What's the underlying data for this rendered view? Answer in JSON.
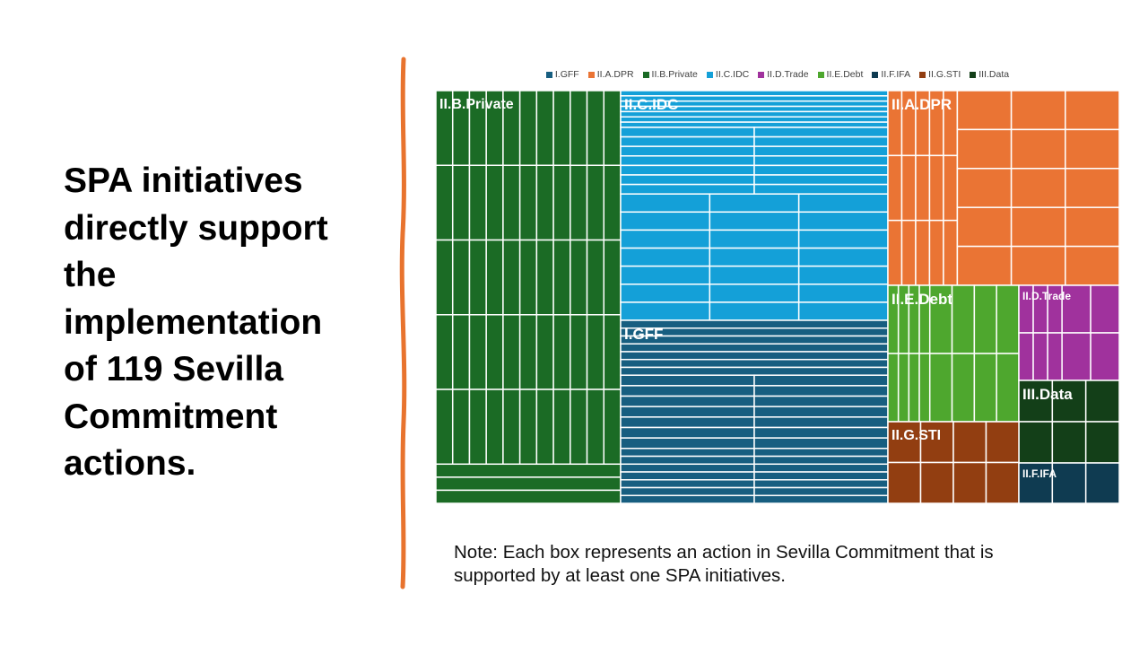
{
  "slide": {
    "headline": "SPA initiatives\ndirectly support\nthe\nimplementation\nof 119 Sevilla\nCommitment\nactions.",
    "note_line1": "Note: Each box represents an action in Sevilla Commitment that is",
    "note_line2": "supported by at least one SPA initiatives.",
    "divider_color": "#E8732E"
  },
  "chart_data": {
    "type": "treemap",
    "title": "",
    "unit": "actions (each box = one Sevilla Commitment action)",
    "total": 119,
    "legend_position": "top",
    "legend": [
      "I.GFF",
      "II.A.DPR",
      "II.B.Private",
      "II.C.IDC",
      "II.D.Trade",
      "II.E.Debt",
      "II.F.IFA",
      "II.G.STI",
      "III.Data"
    ],
    "categories": [
      {
        "name": "II.B.Private",
        "color": "#1B6B25",
        "label": "II.B.Private"
      },
      {
        "name": "II.C.IDC",
        "color": "#14A0D8",
        "label": "II.C.IDC"
      },
      {
        "name": "I.GFF",
        "color": "#175E80",
        "label": "I.GFF"
      },
      {
        "name": "II.A.DPR",
        "color": "#EA7434",
        "label": "II.A.DPR"
      },
      {
        "name": "II.E.Debt",
        "color": "#4EA72E",
        "label": "II.E.Debt"
      },
      {
        "name": "II.D.Trade",
        "color": "#A0329D",
        "label": "II.D.Trade"
      },
      {
        "name": "III.Data",
        "color": "#133F18",
        "label": "III.Data"
      },
      {
        "name": "II.G.STI",
        "color": "#923E11",
        "label": "II.G.STI"
      },
      {
        "name": "II.F.IFA",
        "color": "#0F3B51",
        "label": "II.F.IFA"
      }
    ]
  }
}
